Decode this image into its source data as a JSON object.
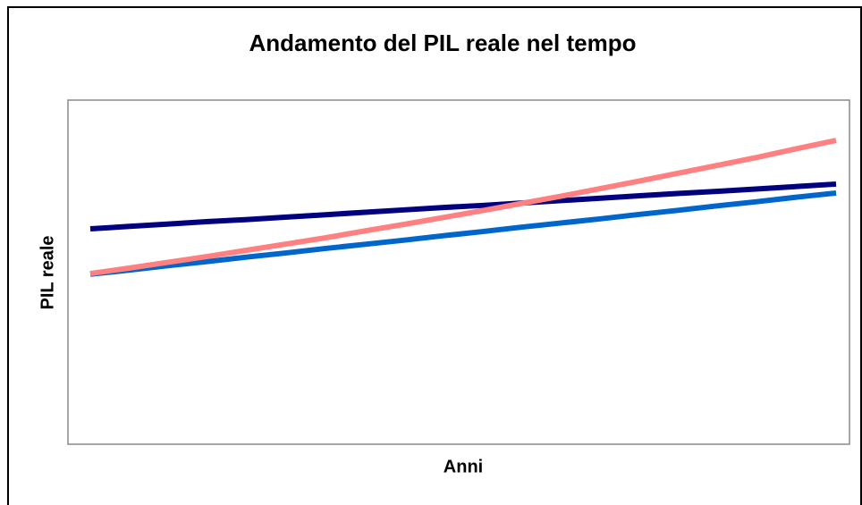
{
  "chart_data": {
    "type": "line",
    "title": "Andamento del PIL reale nel tempo",
    "x_label": "Anni",
    "y_label": "PIL reale",
    "categories": [
      null,
      null,
      null,
      null,
      null,
      null,
      null,
      null,
      null,
      null,
      null,
      null,
      null,
      null,
      null,
      null,
      null,
      null,
      null,
      null
    ],
    "series": [
      {
        "color": "#000080",
        "values": [
          62.6,
          63.3,
          64.0,
          64.7,
          65.3,
          66.0,
          66.7,
          67.4,
          68.1,
          68.8,
          69.4,
          70.1,
          70.8,
          71.5,
          72.2,
          72.9,
          73.5,
          74.2,
          74.9,
          75.6
        ]
      },
      {
        "color": "#0066cc",
        "values": [
          49.4,
          50.6,
          51.9,
          53.1,
          54.4,
          55.6,
          56.9,
          58.1,
          59.3,
          60.6,
          61.8,
          63.1,
          64.3,
          65.5,
          66.8,
          68.0,
          69.3,
          70.5,
          71.8,
          73.0
        ]
      },
      {
        "color": "#ff8080",
        "values": [
          49.6,
          51.2,
          52.9,
          54.6,
          56.4,
          58.2,
          60.0,
          62.0,
          63.9,
          65.9,
          67.9,
          70.0,
          72.1,
          74.3,
          76.5,
          78.8,
          81.1,
          83.4,
          85.9,
          88.3
        ]
      }
    ],
    "ylim": [
      0,
      100
    ],
    "grid": false
  }
}
